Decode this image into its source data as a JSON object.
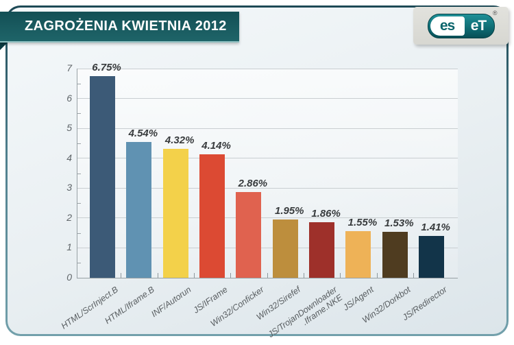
{
  "header": {
    "title": "ZAGROŻENIA KWIETNIA 2012"
  },
  "logo": {
    "part1": "es",
    "part2": "eT",
    "registered": "®"
  },
  "chart_data": {
    "type": "bar",
    "title": "ZAGROŻENIA KWIETNIA 2012",
    "categories": [
      "HTML/ScrInject.B",
      "HTML/Iframe.B",
      "INF/Autorun",
      "JS/IFrame",
      "Win32/Conficker",
      "Win32/Sirefef",
      "JS/TrojanDownloader\n.Iframe.NKE",
      "JS/Agent",
      "Win32/Dorkbot",
      "JS/Redirector"
    ],
    "values": [
      6.75,
      4.54,
      4.32,
      4.14,
      2.86,
      1.95,
      1.86,
      1.55,
      1.53,
      1.41
    ],
    "value_labels": [
      "6.75%",
      "4.54%",
      "4.32%",
      "4.14%",
      "2.86%",
      "1.95%",
      "1.86%",
      "1.55%",
      "1.53%",
      "1.41%"
    ],
    "bar_colors": [
      "#3c5a77",
      "#6092b2",
      "#f3d14a",
      "#dc4a33",
      "#e0624f",
      "#bd8e3d",
      "#9e302a",
      "#eeb257",
      "#4f3c20",
      "#123449"
    ],
    "xlabel": "",
    "ylabel": "",
    "ylim": [
      0,
      7
    ],
    "ytick_step": 1,
    "ytick_minor_step": 0.5,
    "grid": true,
    "legend": false
  }
}
